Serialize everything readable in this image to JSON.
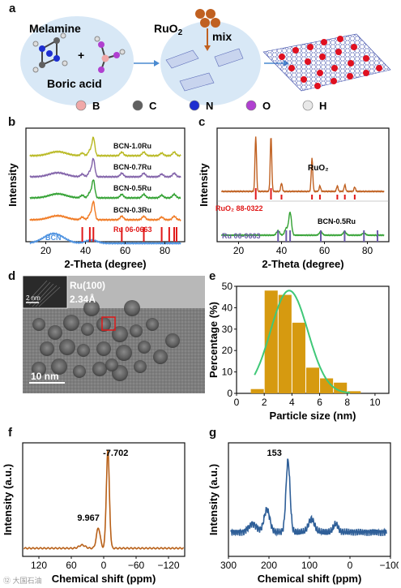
{
  "panels": {
    "a": "a",
    "b": "b",
    "c": "c",
    "d": "d",
    "e": "e",
    "f": "f",
    "g": "g"
  },
  "scheme": {
    "melamine": "Melamine",
    "boric_acid": "Boric acid",
    "ruo2": "RuO",
    "ruo2_sub": "2",
    "mix": "mix",
    "plus": "+",
    "legend": [
      {
        "label": "B",
        "color": "#f0a8a8"
      },
      {
        "label": "C",
        "color": "#606060"
      },
      {
        "label": "N",
        "color": "#1e2fd0"
      },
      {
        "label": "O",
        "color": "#b040d0"
      },
      {
        "label": "H",
        "color": "#e8e8e8"
      }
    ]
  },
  "tem": {
    "plane": "Ru(100)",
    "spacing": "2.34Å",
    "scale_big": "10 nm",
    "scale_small": "2 nm"
  },
  "chart_data": [
    {
      "panel": "b",
      "type": "line",
      "xlabel": "2-Theta (degree)",
      "ylabel": "Intensity",
      "xlim": [
        10,
        90
      ],
      "xticks": [
        20,
        40,
        60,
        80
      ],
      "series": [
        {
          "name": "BCN-1.0Ru",
          "color": "#b8b820"
        },
        {
          "name": "BCN-0.7Ru",
          "color": "#8060a8"
        },
        {
          "name": "BCN-0.5Ru",
          "color": "#30a030"
        },
        {
          "name": "BCN-0.3Ru",
          "color": "#f07820"
        },
        {
          "name": "BCN",
          "color": "#4a90e0"
        }
      ],
      "reference": {
        "name": "Ru 06-0663",
        "color": "#e01818",
        "peaks": [
          38.4,
          42.2,
          44.0,
          58.3,
          69.4,
          78.4,
          82.2,
          84.7,
          85.9
        ]
      }
    },
    {
      "panel": "c",
      "type": "line",
      "xlabel": "2-Theta (degree)",
      "ylabel": "Intensity",
      "xlim": [
        10,
        90
      ],
      "xticks": [
        20,
        40,
        60,
        80
      ],
      "series": [
        {
          "name": "RuO₂",
          "color": "#c06020"
        },
        {
          "name": "BCN-0.5Ru",
          "color": "#30a030"
        }
      ],
      "references": [
        {
          "name": "RuO₂ 88-0322",
          "color": "#e01818",
          "peaks": [
            28.0,
            35.1,
            40.0,
            54.2,
            57.9,
            66.0,
            69.5,
            74.1
          ]
        },
        {
          "name": "Ru 06-0663",
          "color": "#6a5aa8",
          "peaks": [
            38.4,
            42.2,
            44.0,
            58.3,
            69.4,
            78.4,
            84.7
          ]
        }
      ]
    },
    {
      "panel": "e",
      "type": "bar",
      "xlabel": "Particle size (nm)",
      "ylabel": "Percentage (%)",
      "xlim": [
        0,
        11
      ],
      "ylim": [
        0,
        50
      ],
      "xticks": [
        0,
        2,
        4,
        6,
        8,
        10
      ],
      "yticks": [
        0,
        10,
        20,
        30,
        40,
        50
      ],
      "x": [
        1.5,
        2.5,
        3.5,
        4.5,
        5.5,
        6.5,
        7.5,
        8.5
      ],
      "values": [
        2,
        48,
        46,
        33,
        12,
        7,
        5,
        1
      ],
      "bar_color": "#d69a10",
      "fit_color": "#40c878"
    },
    {
      "panel": "f",
      "type": "line",
      "xlabel": "Chemical shift (ppm)",
      "ylabel": "Intensity (a.u.)",
      "xlim": [
        150,
        -150
      ],
      "xticks": [
        120,
        60,
        0,
        -60,
        -120
      ],
      "xtick_labels": [
        "120",
        "60",
        "0",
        "−60",
        "−120"
      ],
      "color": "#b86018",
      "peaks": [
        {
          "x": -7.702,
          "label": "-7.702"
        },
        {
          "x": 9.967,
          "label": "9.967"
        }
      ]
    },
    {
      "panel": "g",
      "type": "line",
      "xlabel": "Chemical shift (ppm)",
      "ylabel": "Intensity (a.u.)",
      "xlim": [
        300,
        -100
      ],
      "xticks": [
        300,
        200,
        100,
        0,
        -100
      ],
      "xtick_labels": [
        "300",
        "200",
        "100",
        "0",
        "−100"
      ],
      "color": "#2f5f98",
      "peaks": [
        {
          "x": 153,
          "label": "153"
        }
      ]
    }
  ],
  "watermark": "⑫ 大国石油"
}
